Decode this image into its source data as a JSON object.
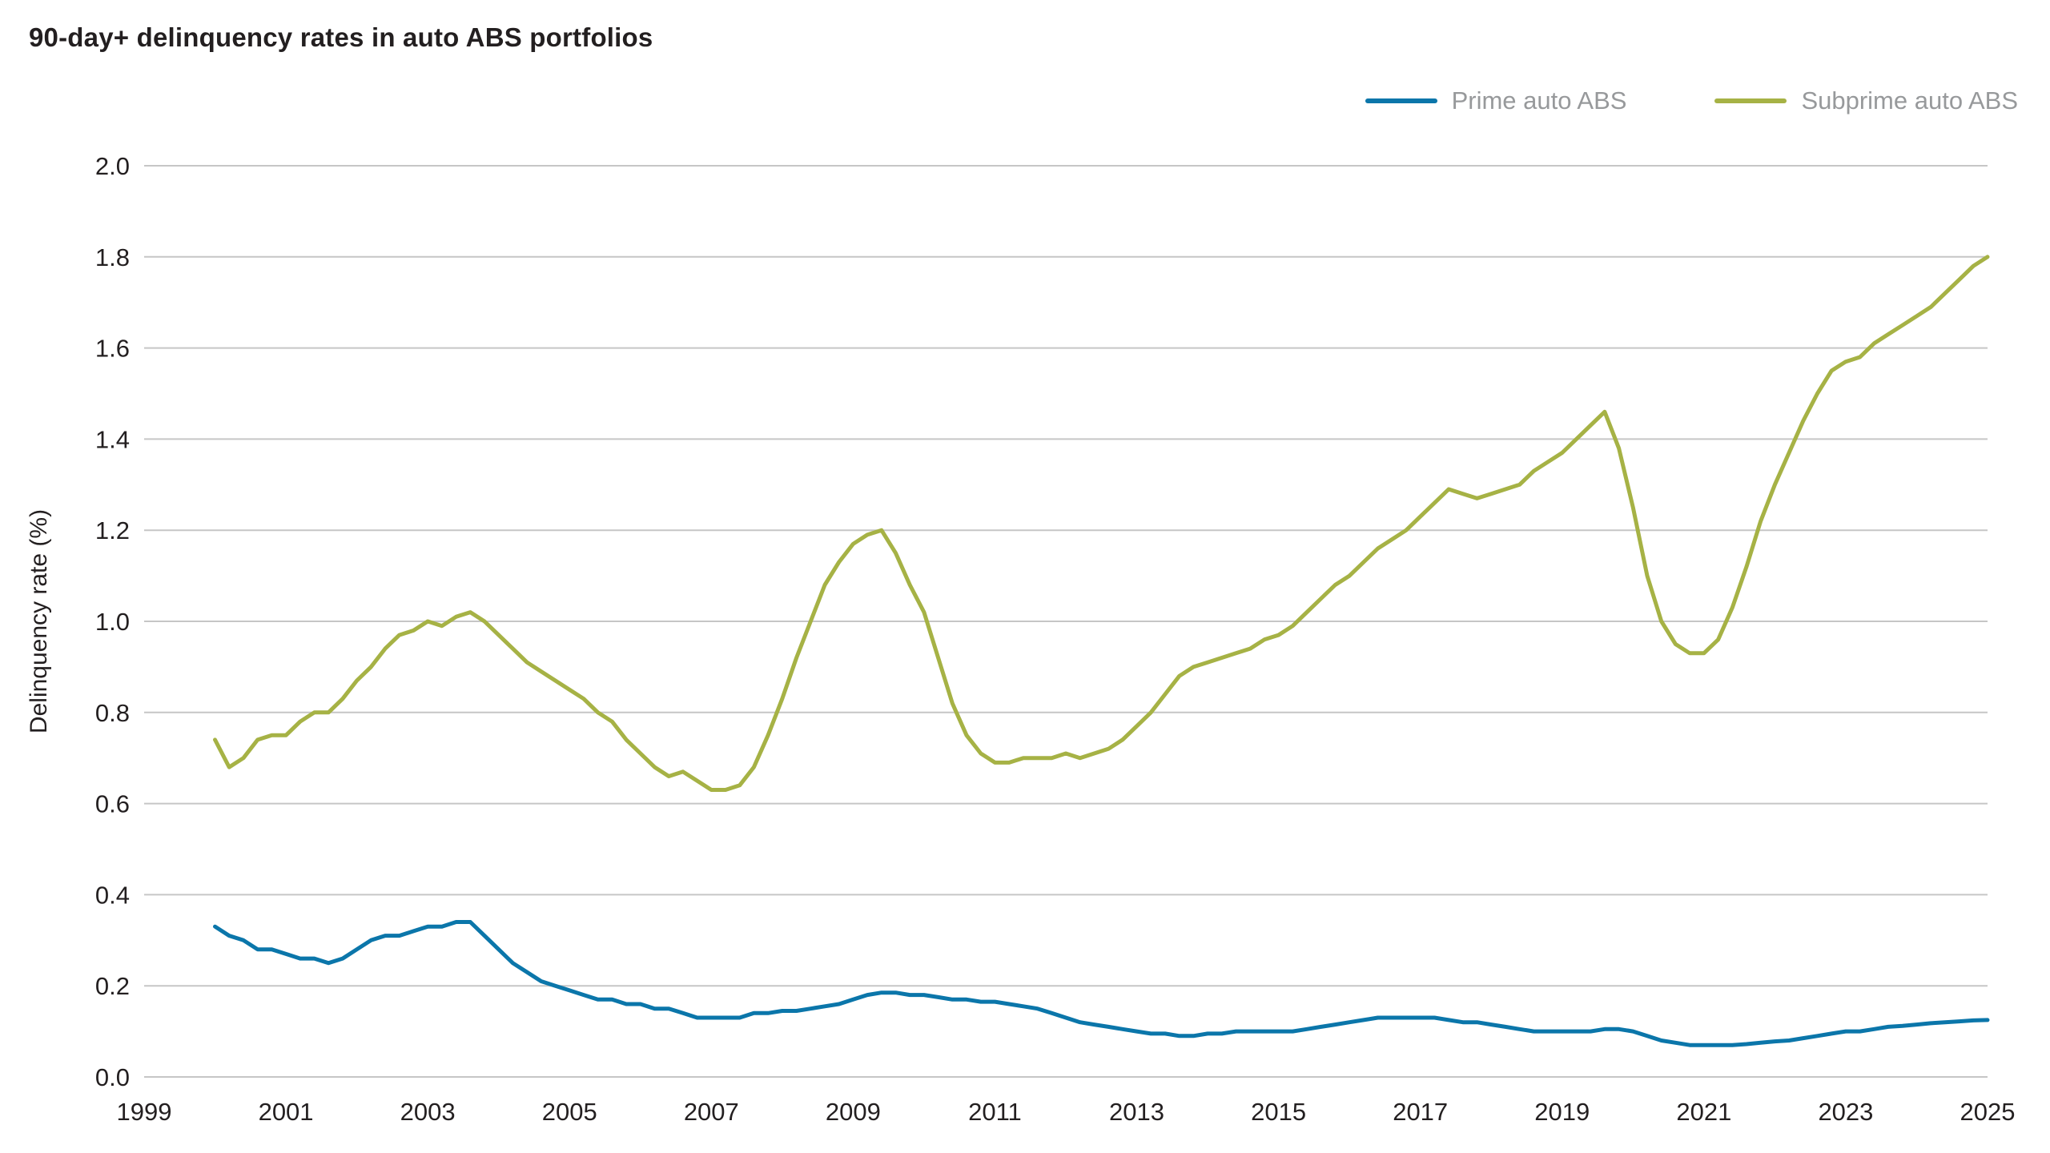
{
  "page": {
    "background": "#ffffff"
  },
  "chart_data": {
    "type": "line",
    "title": "90-day+ delinquency rates in auto ABS portfolios",
    "xlabel": "",
    "ylabel": "Delinquency rate (%)",
    "xlim": [
      1999,
      2025
    ],
    "ylim": [
      0.0,
      2.0
    ],
    "grid": "horizontal",
    "legend_position": "top-right",
    "xticks": [
      1999,
      2001,
      2003,
      2005,
      2007,
      2009,
      2011,
      2013,
      2015,
      2017,
      2019,
      2021,
      2023,
      2025
    ],
    "yticks": [
      0.0,
      0.2,
      0.4,
      0.6,
      0.8,
      1.0,
      1.2,
      1.4,
      1.6,
      1.8,
      2.0
    ],
    "ytick_labels": [
      "0.0",
      "0.2",
      "0.4",
      "0.6",
      "0.8",
      "1.0",
      "1.2",
      "1.4",
      "1.6",
      "1.8",
      "2.0"
    ],
    "style": {
      "grid_color": "#c6c6c6",
      "text_color": "#231f20",
      "legend_text_color": "#97999b"
    },
    "x": [
      2000.0,
      2000.2,
      2000.4,
      2000.6,
      2000.8,
      2001.0,
      2001.2,
      2001.4,
      2001.6,
      2001.8,
      2002.0,
      2002.2,
      2002.4,
      2002.6,
      2002.8,
      2003.0,
      2003.2,
      2003.4,
      2003.6,
      2003.8,
      2004.0,
      2004.2,
      2004.4,
      2004.6,
      2004.8,
      2005.0,
      2005.2,
      2005.4,
      2005.6,
      2005.8,
      2006.0,
      2006.2,
      2006.4,
      2006.6,
      2006.8,
      2007.0,
      2007.2,
      2007.4,
      2007.6,
      2007.8,
      2008.0,
      2008.2,
      2008.4,
      2008.6,
      2008.8,
      2009.0,
      2009.2,
      2009.4,
      2009.6,
      2009.8,
      2010.0,
      2010.2,
      2010.4,
      2010.6,
      2010.8,
      2011.0,
      2011.2,
      2011.4,
      2011.6,
      2011.8,
      2012.0,
      2012.2,
      2012.4,
      2012.6,
      2012.8,
      2013.0,
      2013.2,
      2013.4,
      2013.6,
      2013.8,
      2014.0,
      2014.2,
      2014.4,
      2014.6,
      2014.8,
      2015.0,
      2015.2,
      2015.4,
      2015.6,
      2015.8,
      2016.0,
      2016.2,
      2016.4,
      2016.6,
      2016.8,
      2017.0,
      2017.2,
      2017.4,
      2017.6,
      2017.8,
      2018.0,
      2018.2,
      2018.4,
      2018.6,
      2018.8,
      2019.0,
      2019.2,
      2019.4,
      2019.6,
      2019.8,
      2020.0,
      2020.2,
      2020.4,
      2020.6,
      2020.8,
      2021.0,
      2021.2,
      2021.4,
      2021.6,
      2021.8,
      2022.0,
      2022.2,
      2022.4,
      2022.6,
      2022.8,
      2023.0,
      2023.2,
      2023.4,
      2023.6,
      2023.8,
      2024.0,
      2024.2,
      2024.4,
      2024.6,
      2024.8,
      2025.0
    ],
    "series": [
      {
        "name": "Prime auto ABS",
        "color": "#0b76aa",
        "values": [
          0.33,
          0.31,
          0.3,
          0.28,
          0.28,
          0.27,
          0.26,
          0.26,
          0.25,
          0.26,
          0.28,
          0.3,
          0.31,
          0.31,
          0.32,
          0.33,
          0.33,
          0.34,
          0.34,
          0.31,
          0.28,
          0.25,
          0.23,
          0.21,
          0.2,
          0.19,
          0.18,
          0.17,
          0.17,
          0.16,
          0.16,
          0.15,
          0.15,
          0.14,
          0.13,
          0.13,
          0.13,
          0.13,
          0.14,
          0.14,
          0.145,
          0.145,
          0.15,
          0.155,
          0.16,
          0.17,
          0.18,
          0.185,
          0.185,
          0.18,
          0.18,
          0.175,
          0.17,
          0.17,
          0.165,
          0.165,
          0.16,
          0.155,
          0.15,
          0.14,
          0.13,
          0.12,
          0.115,
          0.11,
          0.105,
          0.1,
          0.095,
          0.095,
          0.09,
          0.09,
          0.095,
          0.095,
          0.1,
          0.1,
          0.1,
          0.1,
          0.1,
          0.105,
          0.11,
          0.115,
          0.12,
          0.125,
          0.13,
          0.13,
          0.13,
          0.13,
          0.13,
          0.125,
          0.12,
          0.12,
          0.115,
          0.11,
          0.105,
          0.1,
          0.1,
          0.1,
          0.1,
          0.1,
          0.105,
          0.105,
          0.1,
          0.09,
          0.08,
          0.075,
          0.07,
          0.07,
          0.07,
          0.07,
          0.072,
          0.075,
          0.078,
          0.08,
          0.085,
          0.09,
          0.095,
          0.1,
          0.1,
          0.105,
          0.11,
          0.112,
          0.115,
          0.118,
          0.12,
          0.122,
          0.124,
          0.125
        ]
      },
      {
        "name": "Subprime auto ABS",
        "color": "#a6b245",
        "values": [
          0.74,
          0.68,
          0.7,
          0.74,
          0.75,
          0.75,
          0.78,
          0.8,
          0.8,
          0.83,
          0.87,
          0.9,
          0.94,
          0.97,
          0.98,
          1.0,
          0.99,
          1.01,
          1.02,
          1.0,
          0.97,
          0.94,
          0.91,
          0.89,
          0.87,
          0.85,
          0.83,
          0.8,
          0.78,
          0.74,
          0.71,
          0.68,
          0.66,
          0.67,
          0.65,
          0.63,
          0.63,
          0.64,
          0.68,
          0.75,
          0.83,
          0.92,
          1.0,
          1.08,
          1.13,
          1.17,
          1.19,
          1.2,
          1.15,
          1.08,
          1.02,
          0.92,
          0.82,
          0.75,
          0.71,
          0.69,
          0.69,
          0.7,
          0.7,
          0.7,
          0.71,
          0.7,
          0.71,
          0.72,
          0.74,
          0.77,
          0.8,
          0.84,
          0.88,
          0.9,
          0.91,
          0.92,
          0.93,
          0.94,
          0.96,
          0.97,
          0.99,
          1.02,
          1.05,
          1.08,
          1.1,
          1.13,
          1.16,
          1.18,
          1.2,
          1.23,
          1.26,
          1.29,
          1.28,
          1.27,
          1.28,
          1.29,
          1.3,
          1.33,
          1.35,
          1.37,
          1.4,
          1.43,
          1.46,
          1.38,
          1.25,
          1.1,
          1.0,
          0.95,
          0.93,
          0.93,
          0.96,
          1.03,
          1.12,
          1.22,
          1.3,
          1.37,
          1.44,
          1.5,
          1.55,
          1.57,
          1.58,
          1.61,
          1.63,
          1.65,
          1.67,
          1.69,
          1.72,
          1.75,
          1.78,
          1.8
        ]
      }
    ]
  }
}
